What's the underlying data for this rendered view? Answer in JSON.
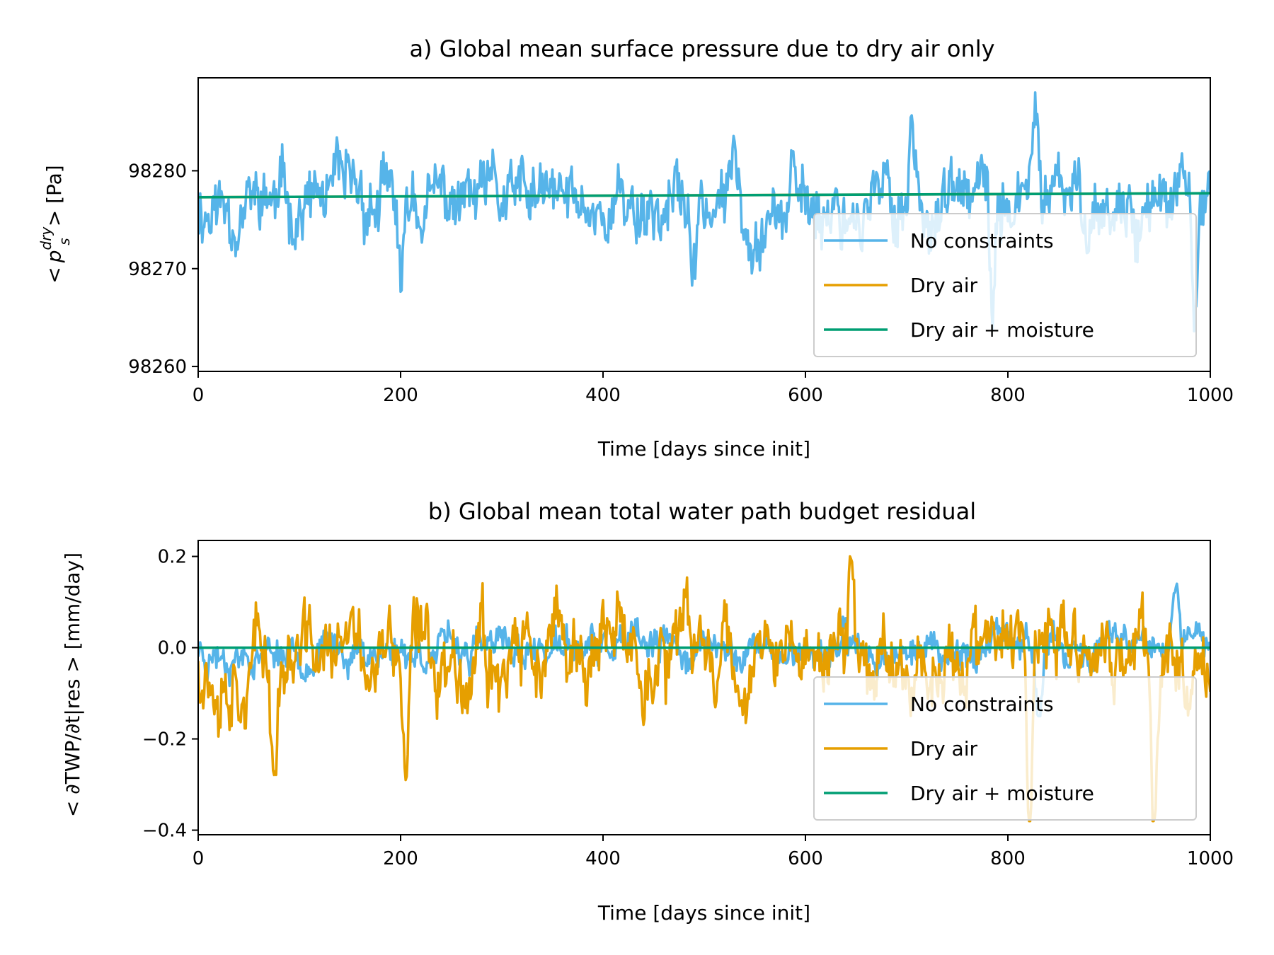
{
  "chart_data": [
    {
      "type": "line",
      "title": "a) Global mean surface pressure due to dry air only",
      "xlabel": "Time [days since init]",
      "ylabel_prefix": "<",
      "ylabel_var": "p",
      "ylabel_sub": "s",
      "ylabel_sup": "dry",
      "ylabel_suffix": "> [Pa]",
      "xlim": [
        0,
        1000
      ],
      "ylim": [
        98259.5,
        98289.5
      ],
      "xticks": [
        0,
        200,
        400,
        600,
        800,
        1000
      ],
      "xtick_labels": [
        "0",
        "200",
        "400",
        "600",
        "800",
        "1000"
      ],
      "yticks": [
        98260,
        98270,
        98280
      ],
      "ytick_labels": [
        "98260",
        "98270",
        "98280"
      ],
      "legend_position": "lower-right",
      "series": [
        {
          "name": "No constraints",
          "color": "#56b4e9",
          "mean": 98276.6,
          "amplitude": 3.2,
          "noise": 2.1,
          "seed": 11,
          "min": 98261,
          "max": 98288,
          "events": [
            [
              201,
              -10
            ],
            [
              490,
              -9
            ],
            [
              530,
              5
            ],
            [
              705,
              9
            ],
            [
              785,
              -12
            ],
            [
              828,
              9
            ],
            [
              985,
              -14
            ]
          ]
        },
        {
          "name": "Dry air",
          "color": "#e69f00",
          "start": 98277.3,
          "end": 98277.7
        },
        {
          "name": "Dry air + moisture",
          "color": "#009e73",
          "start": 98277.3,
          "end": 98277.7
        }
      ]
    },
    {
      "type": "line",
      "title": "b) Global mean total water path budget residual",
      "xlabel": "Time [days since init]",
      "ylabel_text": "< ∂TWP/∂t|res > [mm/day]",
      "xlim": [
        0,
        1000
      ],
      "ylim": [
        -0.41,
        0.235
      ],
      "xticks": [
        0,
        200,
        400,
        600,
        800,
        1000
      ],
      "xtick_labels": [
        "0",
        "200",
        "400",
        "600",
        "800",
        "1000"
      ],
      "yticks": [
        -0.4,
        -0.2,
        0.0,
        0.2
      ],
      "ytick_labels": [
        "−0.4",
        "−0.2",
        "0.0",
        "0.2"
      ],
      "legend_position": "lower-right",
      "series": [
        {
          "name": "No constraints",
          "color": "#56b4e9",
          "mean": -0.005,
          "amplitude": 0.035,
          "noise": 0.022,
          "seed": 23,
          "min": -0.15,
          "max": 0.14,
          "events": [
            [
              830,
              -0.12
            ],
            [
              965,
              0.13
            ]
          ]
        },
        {
          "name": "Dry air",
          "color": "#e69f00",
          "mean": -0.02,
          "amplitude": 0.085,
          "noise": 0.045,
          "seed": 37,
          "min": -0.38,
          "max": 0.2,
          "events": [
            [
              75,
              -0.25
            ],
            [
              205,
              -0.26
            ],
            [
              280,
              0.19
            ],
            [
              520,
              0.13
            ],
            [
              645,
              0.2
            ],
            [
              822,
              -0.38
            ],
            [
              944,
              -0.38
            ]
          ]
        },
        {
          "name": "Dry air + moisture",
          "color": "#009e73",
          "start": 0.0,
          "end": 0.0
        }
      ]
    }
  ]
}
